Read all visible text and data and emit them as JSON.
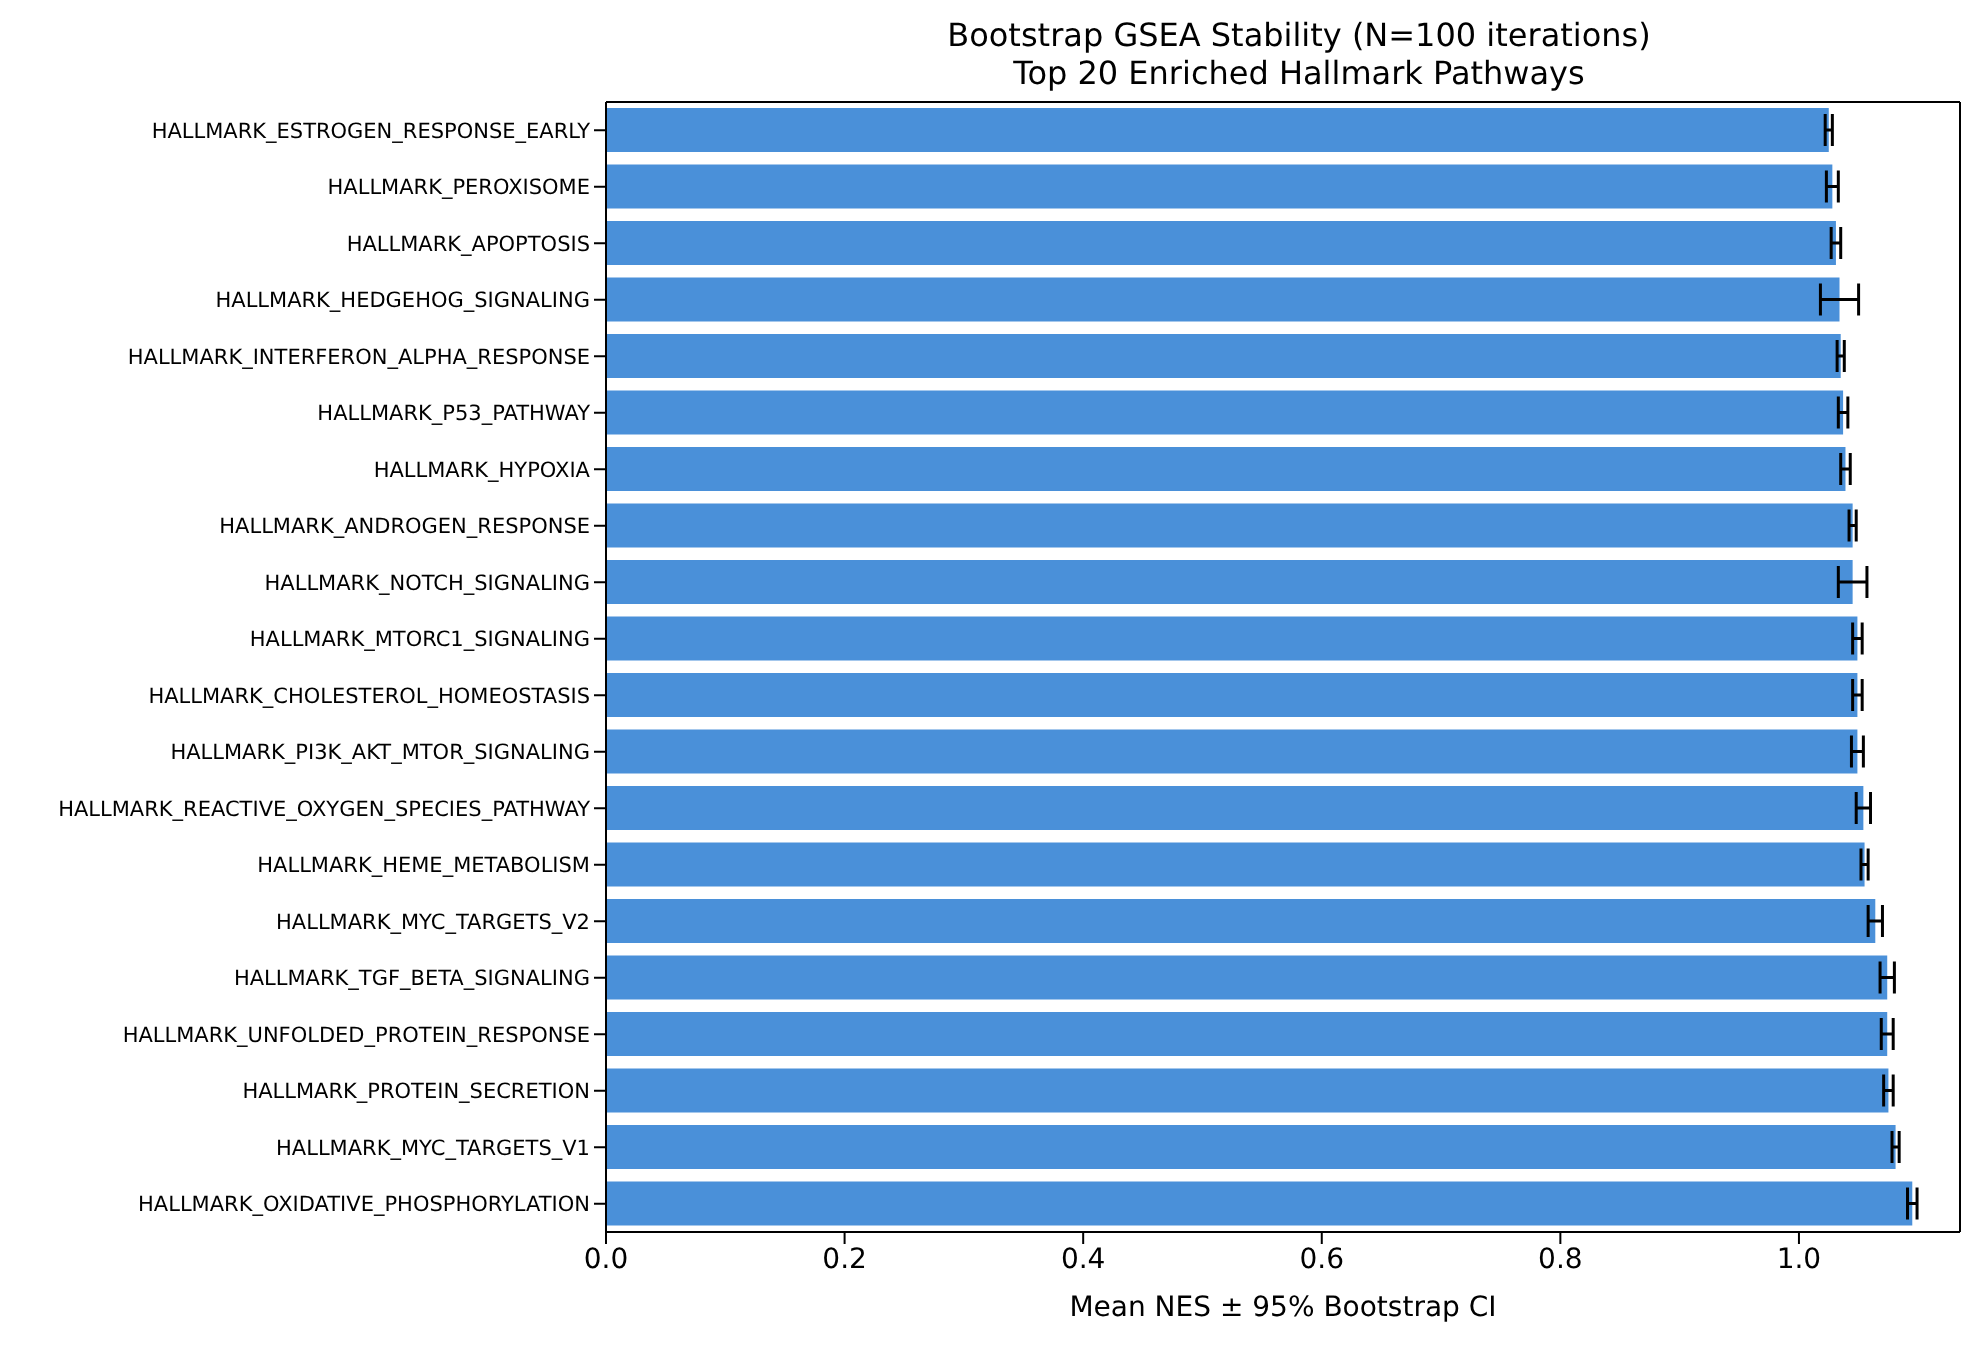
{
  "chart_data": {
    "type": "bar",
    "orientation": "horizontal",
    "title": "Bootstrap GSEA Stability (N=100 iterations)\nTop 20 Enriched Hallmark Pathways",
    "xlabel": "Mean NES ± 95% Bootstrap CI",
    "categories": [
      "HALLMARK_ESTROGEN_RESPONSE_EARLY",
      "HALLMARK_PEROXISOME",
      "HALLMARK_APOPTOSIS",
      "HALLMARK_HEDGEHOG_SIGNALING",
      "HALLMARK_INTERFERON_ALPHA_RESPONSE",
      "HALLMARK_P53_PATHWAY",
      "HALLMARK_HYPOXIA",
      "HALLMARK_ANDROGEN_RESPONSE",
      "HALLMARK_NOTCH_SIGNALING",
      "HALLMARK_MTORC1_SIGNALING",
      "HALLMARK_CHOLESTEROL_HOMEOSTASIS",
      "HALLMARK_PI3K_AKT_MTOR_SIGNALING",
      "HALLMARK_REACTIVE_OXYGEN_SPECIES_PATHWAY",
      "HALLMARK_HEME_METABOLISM",
      "HALLMARK_MYC_TARGETS_V2",
      "HALLMARK_TGF_BETA_SIGNALING",
      "HALLMARK_UNFOLDED_PROTEIN_RESPONSE",
      "HALLMARK_PROTEIN_SECRETION",
      "HALLMARK_MYC_TARGETS_V1",
      "HALLMARK_OXIDATIVE_PHOSPHORYLATION"
    ],
    "values": [
      1.025,
      1.028,
      1.031,
      1.034,
      1.035,
      1.037,
      1.039,
      1.045,
      1.045,
      1.049,
      1.049,
      1.049,
      1.054,
      1.055,
      1.064,
      1.074,
      1.074,
      1.075,
      1.081,
      1.095
    ],
    "errors": [
      0.003,
      0.005,
      0.004,
      0.016,
      0.003,
      0.004,
      0.004,
      0.003,
      0.012,
      0.004,
      0.004,
      0.005,
      0.006,
      0.003,
      0.006,
      0.006,
      0.005,
      0.004,
      0.003,
      0.004
    ],
    "color": "#4a90d9",
    "xlim": [
      0,
      1.135
    ],
    "xticks": [
      {
        "value": 0,
        "label": "0.0"
      },
      0.2,
      0.4,
      0.6,
      0.8,
      {
        "value": 1,
        "label": "1.0"
      }
    ],
    "grid": false
  }
}
